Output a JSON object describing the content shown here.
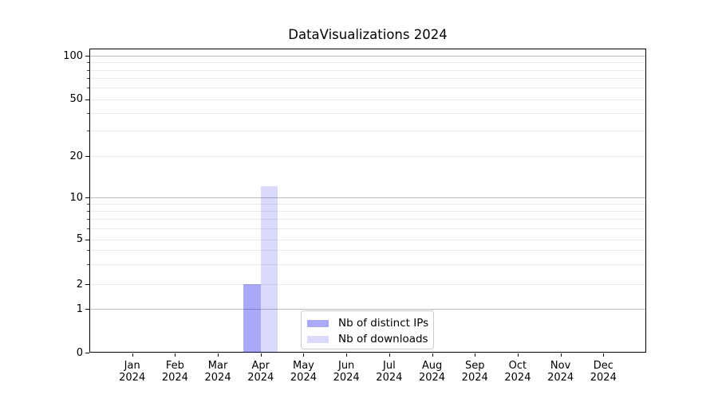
{
  "figure": {
    "title": "DataVisualizations 2024",
    "background": "#ffffff"
  },
  "chart_data": {
    "type": "bar",
    "title": "DataVisualizations 2024",
    "xlabel": "",
    "ylabel": "",
    "categories": [
      "Jan 2024",
      "Feb 2024",
      "Mar 2024",
      "Apr 2024",
      "May 2024",
      "Jun 2024",
      "Jul 2024",
      "Aug 2024",
      "Sep 2024",
      "Oct 2024",
      "Nov 2024",
      "Dec 2024"
    ],
    "series": [
      {
        "name": "Nb of distinct IPs",
        "color": "rgba(8,10,240,0.35)",
        "values": [
          0,
          0,
          0,
          2,
          0,
          0,
          0,
          0,
          0,
          0,
          0,
          0
        ]
      },
      {
        "name": "Nb of downloads",
        "color": "rgba(8,10,240,0.15)",
        "values": [
          0,
          0,
          0,
          12,
          0,
          0,
          0,
          0,
          0,
          0,
          0,
          0
        ]
      }
    ],
    "y_scale": "symlog",
    "ylim": [
      0,
      111
    ],
    "y_ticks": [
      0,
      1,
      2,
      5,
      10,
      20,
      50,
      100
    ],
    "y_tick_labels": [
      "0",
      "1",
      "2",
      "5",
      "10",
      "20",
      "50",
      "100"
    ],
    "y_minor_ticks": [
      3,
      4,
      6,
      7,
      8,
      9,
      30,
      40,
      60,
      70,
      80,
      90
    ],
    "y_major_grid_values": [
      1,
      10,
      100
    ],
    "grid": "horizontal major+minor, no vertical grid",
    "legend_position": "lower center"
  },
  "legend": {
    "items": [
      {
        "label": "Nb of distinct IPs",
        "color": "rgba(8,10,240,0.35)"
      },
      {
        "label": "Nb of downloads",
        "color": "rgba(8,10,240,0.15)"
      }
    ]
  },
  "colors": {
    "bar_distinct_ips": "#a9a9fa",
    "bar_downloads": "#dadafd",
    "major_grid": "#bdbdbd",
    "minor_grid": "#ebebeb",
    "spine": "#000000",
    "legend_border": "#cccccc",
    "text": "#000000"
  }
}
